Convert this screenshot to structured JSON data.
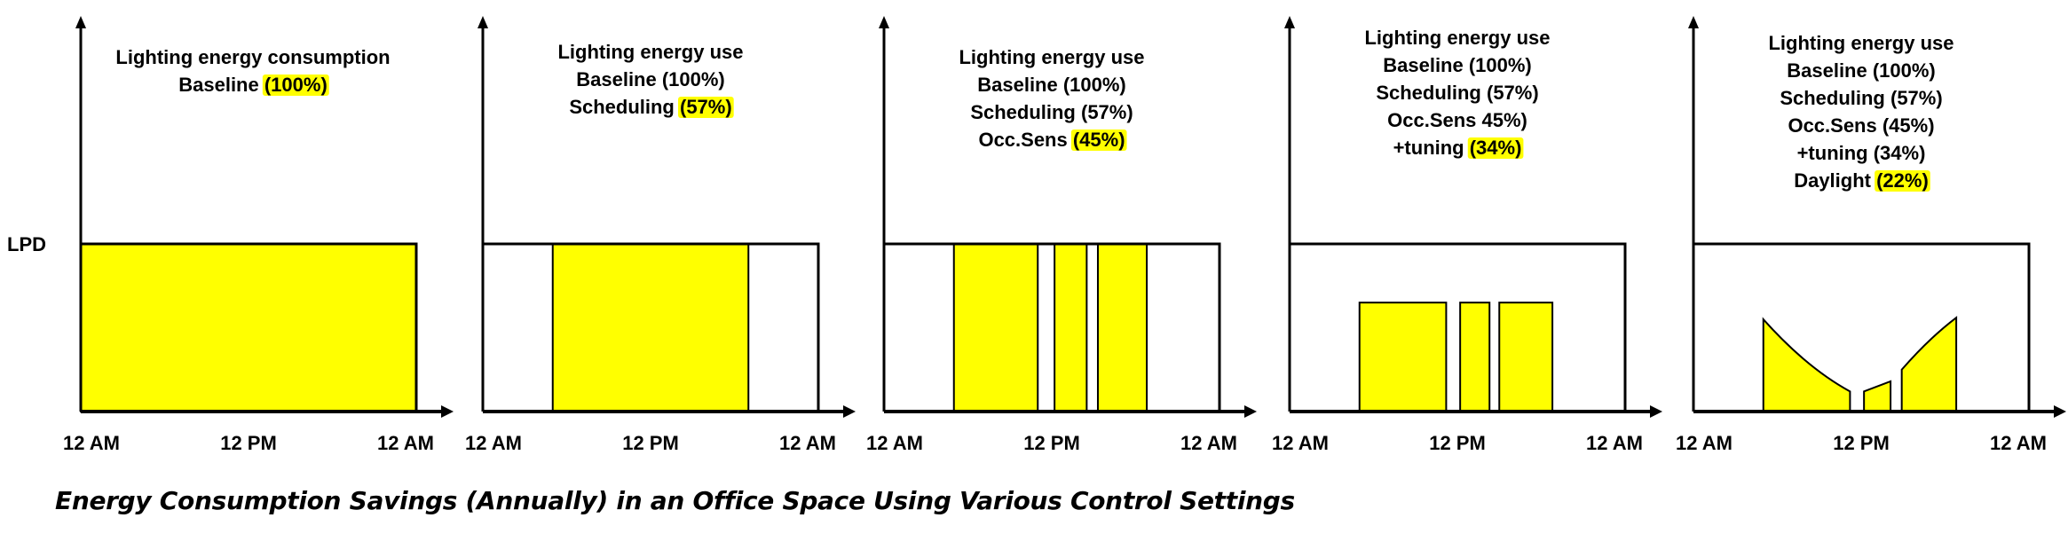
{
  "colors": {
    "fill": "#ffff00",
    "highlight": "#ffff00",
    "line": "#000000"
  },
  "y_axis_label": "LPD",
  "caption": "Energy Consumption Savings (Annually) in an Office Space Using Various Control Settings",
  "panels": [
    {
      "title_lines": [
        {
          "text": "Lighting energy consumption"
        },
        {
          "text": "Baseline ",
          "highlight": "(100%)"
        }
      ],
      "x_ticks": [
        "12 AM",
        "12 PM",
        "12 AM"
      ],
      "fill_type": "blocks",
      "blocks": [
        {
          "start_h": 0,
          "end_h": 24,
          "level": 1.0
        }
      ]
    },
    {
      "title_lines": [
        {
          "text": "Lighting energy use"
        },
        {
          "text": "Baseline (100%)"
        },
        {
          "text": "Scheduling ",
          "highlight": "(57%)"
        }
      ],
      "x_ticks": [
        "12 AM",
        "12 PM",
        "12 AM"
      ],
      "fill_type": "blocks",
      "blocks": [
        {
          "start_h": 5,
          "end_h": 19,
          "level": 1.0
        }
      ]
    },
    {
      "title_lines": [
        {
          "text": "Lighting energy use"
        },
        {
          "text": "Baseline (100%)"
        },
        {
          "text": "Scheduling (57%)"
        },
        {
          "text": "Occ.Sens ",
          "highlight": "(45%)"
        }
      ],
      "x_ticks": [
        "12 AM",
        "12 PM",
        "12 AM"
      ],
      "fill_type": "blocks",
      "blocks": [
        {
          "start_h": 5,
          "end_h": 11,
          "level": 1.0
        },
        {
          "start_h": 12.2,
          "end_h": 14.5,
          "level": 1.0
        },
        {
          "start_h": 15.3,
          "end_h": 18.8,
          "level": 1.0
        }
      ]
    },
    {
      "title_lines": [
        {
          "text": "Lighting energy use"
        },
        {
          "text": "Baseline (100%)"
        },
        {
          "text": "Scheduling (57%)"
        },
        {
          "text": "Occ.Sens 45%)"
        },
        {
          "text": "+tuning ",
          "highlight": "(34%)"
        }
      ],
      "x_ticks": [
        "12 AM",
        "12 PM",
        "12 AM"
      ],
      "fill_type": "blocks",
      "blocks": [
        {
          "start_h": 5,
          "end_h": 11.2,
          "level": 0.65
        },
        {
          "start_h": 12.2,
          "end_h": 14.3,
          "level": 0.65
        },
        {
          "start_h": 15.0,
          "end_h": 18.8,
          "level": 0.65
        }
      ]
    },
    {
      "title_lines": [
        {
          "text": "Lighting energy use"
        },
        {
          "text": "Baseline (100%)"
        },
        {
          "text": "Scheduling (57%)"
        },
        {
          "text": "Occ.Sens (45%)"
        },
        {
          "text": "+tuning (34%)"
        },
        {
          "text": "Daylight ",
          "highlight": "(22%)"
        }
      ],
      "x_ticks": [
        "12 AM",
        "12 PM",
        "12 AM"
      ],
      "fill_type": "curves",
      "curves": [
        {
          "start_h": 5,
          "end_h": 11.2,
          "start_level": 0.55,
          "end_level": 0.12,
          "dip": 0.35
        },
        {
          "start_h": 12.2,
          "end_h": 14.1,
          "start_level": 0.12,
          "end_level": 0.18,
          "dip": 0
        },
        {
          "start_h": 14.9,
          "end_h": 18.8,
          "start_level": 0.25,
          "end_level": 0.56,
          "dip": -0.15
        }
      ]
    }
  ]
}
